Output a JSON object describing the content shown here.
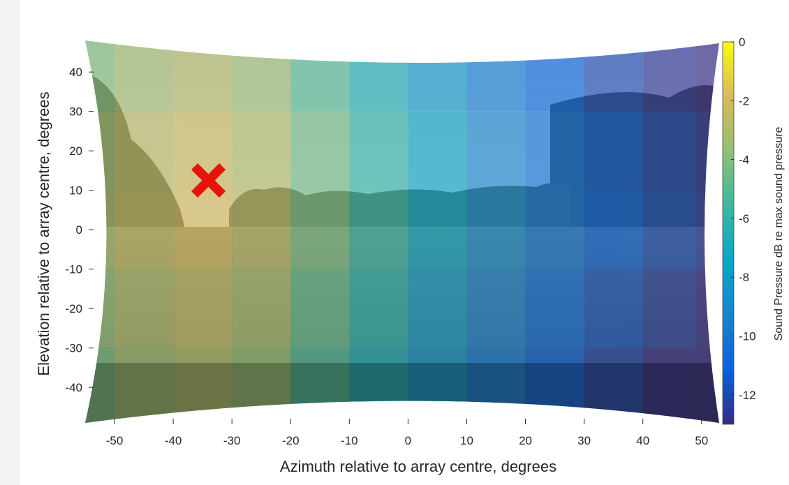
{
  "chart_data": {
    "type": "heatmap",
    "title": "",
    "xlabel": "Azimuth relative to array centre, degrees",
    "ylabel": "Elevation relative to array centre, degrees",
    "xlim": [
      -55,
      53
    ],
    "ylim": [
      -49,
      48
    ],
    "xticks": [
      -50,
      -40,
      -30,
      -20,
      -10,
      0,
      10,
      20,
      30,
      40,
      50
    ],
    "yticks": [
      40,
      30,
      20,
      10,
      0,
      -10,
      -20,
      -30,
      -40
    ],
    "background": "photograph of a park field with a tree line, warped to a barrel shape",
    "colormap": "parula",
    "colorbar": {
      "label": "Sound Pressure dB re max sound pressure",
      "range": [
        -13,
        0
      ],
      "ticks": [
        0,
        -2,
        -4,
        -6,
        -8,
        -10,
        -12
      ]
    },
    "sound_pressure_by_azimuth": {
      "azimuth": [
        -55,
        -45,
        -35,
        -25,
        -15,
        -5,
        5,
        15,
        25,
        35,
        45,
        53
      ],
      "db": [
        -3.4,
        -2.6,
        -2.1,
        -2.8,
        -4.4,
        -6.0,
        -7.6,
        -9.1,
        -10.4,
        -11.4,
        -12.1,
        -12.6
      ]
    },
    "marker": {
      "symbol": "x",
      "azimuth": -34,
      "elevation": 12.5,
      "color": "#e8130b"
    }
  }
}
